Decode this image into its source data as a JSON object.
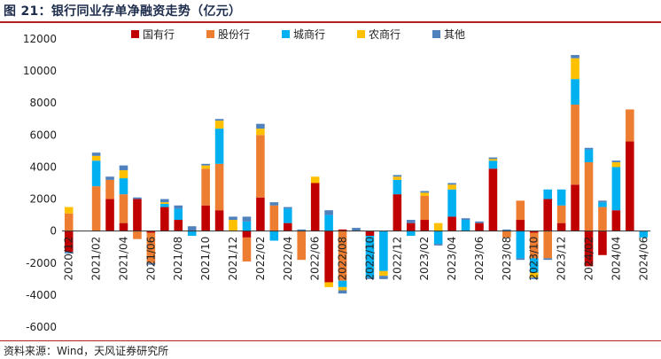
{
  "header": {
    "title": "图 21：银行同业存单净融资走势（亿元）",
    "source": "资料来源：Wind，天风证券研究所"
  },
  "chart_data": {
    "type": "bar",
    "stacked": true,
    "title": "银行同业存单净融资走势（亿元）",
    "ylim": [
      -6000,
      12000
    ],
    "yticks": [
      -6000,
      -4000,
      -2000,
      0,
      2000,
      4000,
      6000,
      8000,
      10000,
      12000
    ],
    "xtick_labels": [
      "2020/12",
      "2021/02",
      "2021/04",
      "2021/06",
      "2021/08",
      "2021/10",
      "2021/12",
      "2022/02",
      "2022/04",
      "2022/06",
      "2022/08",
      "2022/10",
      "2022/12",
      "2023/02",
      "2023/04",
      "2023/06",
      "2023/08",
      "2023/10",
      "2023/12",
      "2024/02",
      "2024/04",
      "2024/06"
    ],
    "legend_position": "top",
    "categories": [
      "2020/12",
      "2021/01",
      "2021/02",
      "2021/03",
      "2021/04",
      "2021/05",
      "2021/06",
      "2021/07",
      "2021/08",
      "2021/09",
      "2021/10",
      "2021/11",
      "2021/12",
      "2022/01",
      "2022/02",
      "2022/03",
      "2022/04",
      "2022/05",
      "2022/06",
      "2022/07",
      "2022/08",
      "2022/09",
      "2022/10",
      "2022/11",
      "2022/12",
      "2023/01",
      "2023/02",
      "2023/03",
      "2023/04",
      "2023/05",
      "2023/06",
      "2023/07",
      "2023/08",
      "2023/09",
      "2023/10",
      "2023/11",
      "2023/12",
      "2024/01",
      "2024/02",
      "2024/03",
      "2024/04",
      "2024/05",
      "2024/06"
    ],
    "series": [
      {
        "name": "国有行",
        "color": "#c00000",
        "values": [
          -1300,
          0,
          0,
          2000,
          500,
          2000,
          -100,
          1500,
          700,
          0,
          1600,
          1300,
          0,
          -400,
          2100,
          0,
          500,
          0,
          3000,
          -3200,
          100,
          0,
          -300,
          0,
          2300,
          500,
          700,
          0,
          900,
          0,
          500,
          3900,
          0,
          700,
          -100,
          2000,
          500,
          2900,
          -2200,
          -1500,
          1300,
          5600,
          0
        ],
        "label_values_shown": false
      },
      {
        "name": "股份行",
        "color": "#ed7d31",
        "values": [
          1100,
          0,
          2800,
          1200,
          1800,
          -500,
          -1900,
          0,
          0,
          0,
          2300,
          2900,
          0,
          -1500,
          3900,
          1600,
          0,
          -1800,
          0,
          0,
          -3100,
          0,
          0,
          0,
          0,
          0,
          1500,
          0,
          0,
          0,
          0,
          0,
          -400,
          1200,
          -1600,
          -1700,
          1100,
          5000,
          4300,
          1500,
          0,
          2000,
          0
        ]
      },
      {
        "name": "城商行",
        "color": "#00b0f0",
        "values": [
          0,
          0,
          1600,
          0,
          1000,
          0,
          0,
          200,
          700,
          -300,
          0,
          2200,
          0,
          600,
          0,
          -600,
          900,
          0,
          0,
          1000,
          -400,
          0,
          -2600,
          -2500,
          900,
          -300,
          0,
          -800,
          1700,
          700,
          0,
          500,
          0,
          -1700,
          -900,
          600,
          1000,
          1600,
          800,
          300,
          2700,
          0,
          -400
        ]
      },
      {
        "name": "农商行",
        "color": "#ffc000",
        "values": [
          400,
          0,
          300,
          0,
          500,
          0,
          0,
          100,
          0,
          0,
          200,
          500,
          700,
          0,
          400,
          0,
          0,
          0,
          400,
          -300,
          -200,
          0,
          0,
          -300,
          200,
          0,
          200,
          500,
          300,
          0,
          0,
          100,
          0,
          0,
          -300,
          0,
          0,
          1300,
          0,
          0,
          300,
          0,
          0
        ]
      },
      {
        "name": "其他",
        "color": "#4f81bd",
        "values": [
          -100,
          0,
          200,
          200,
          300,
          100,
          -100,
          200,
          200,
          300,
          100,
          100,
          200,
          300,
          300,
          200,
          100,
          100,
          0,
          300,
          -200,
          200,
          -100,
          -200,
          100,
          200,
          100,
          -100,
          100,
          100,
          100,
          100,
          100,
          -100,
          -100,
          -100,
          0,
          200,
          100,
          100,
          100,
          0,
          0
        ]
      }
    ]
  }
}
